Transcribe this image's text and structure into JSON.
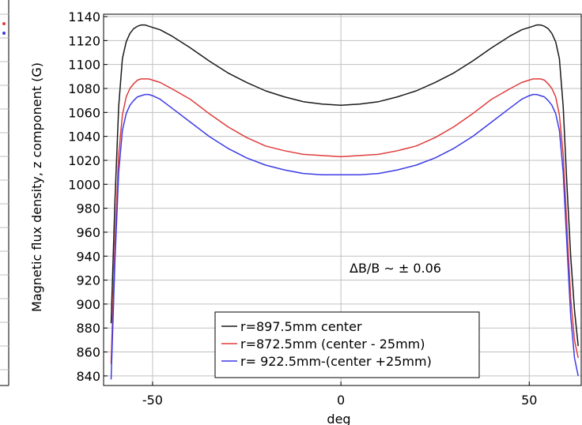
{
  "chart_data": {
    "type": "line",
    "title": "",
    "xlabel": "deg",
    "ylabel": "Magnetic flux density, z component (G)",
    "xlim": [
      -63,
      64
    ],
    "ylim": [
      832,
      1142
    ],
    "x_ticks": [
      -50,
      0,
      50
    ],
    "x_tick_labels": [
      "-50",
      "0",
      "50"
    ],
    "y_ticks": [
      840,
      860,
      880,
      900,
      920,
      940,
      960,
      980,
      1000,
      1020,
      1040,
      1060,
      1080,
      1100,
      1120,
      1140
    ],
    "y_tick_labels": [
      "840",
      "860",
      "880",
      "900",
      "920",
      "940",
      "960",
      "980",
      "1000",
      "1020",
      "1040",
      "1060",
      "1080",
      "1100",
      "1120",
      "1140"
    ],
    "grid": true,
    "legend_position": "bottom-center",
    "annotation": "ΔB/B ∼ ± 0.06",
    "series": [
      {
        "name": "r=897.5mm center",
        "color": "#1a1a1a",
        "x": [
          -61,
          -60,
          -59,
          -58,
          -57,
          -56,
          -55,
          -54,
          -53,
          -52,
          -51,
          -50,
          -48,
          -45,
          -40,
          -35,
          -30,
          -25,
          -20,
          -15,
          -10,
          -5,
          0,
          5,
          10,
          15,
          20,
          25,
          30,
          35,
          40,
          45,
          48,
          50,
          51,
          52,
          53,
          54,
          55,
          56,
          57,
          58,
          59,
          60,
          61,
          62,
          63
        ],
        "values": [
          884,
          985,
          1065,
          1105,
          1119,
          1126,
          1130,
          1132,
          1133,
          1133,
          1132,
          1131,
          1129,
          1124,
          1114,
          1103,
          1093,
          1085,
          1078,
          1073,
          1069,
          1067,
          1066,
          1067,
          1069,
          1073,
          1078,
          1085,
          1093,
          1103,
          1114,
          1124,
          1129,
          1131,
          1132,
          1133,
          1133,
          1132,
          1130,
          1126,
          1119,
          1105,
          1065,
          1000,
          940,
          895,
          865
        ]
      },
      {
        "name": "r=872.5mm (center - 25mm)",
        "color": "#e03c3c",
        "x": [
          -61,
          -60,
          -59,
          -58,
          -57,
          -56,
          -55,
          -54,
          -53,
          -52,
          -51,
          -50,
          -48,
          -45,
          -40,
          -35,
          -30,
          -25,
          -20,
          -15,
          -10,
          -5,
          0,
          5,
          10,
          15,
          20,
          25,
          30,
          35,
          40,
          45,
          48,
          50,
          51,
          52,
          53,
          54,
          55,
          56,
          57,
          58,
          59,
          60,
          61,
          62,
          63
        ],
        "values": [
          850,
          950,
          1025,
          1058,
          1073,
          1080,
          1084,
          1087,
          1088,
          1088,
          1088,
          1087,
          1085,
          1080,
          1071,
          1059,
          1048,
          1039,
          1032,
          1028,
          1025,
          1024,
          1023,
          1024,
          1025,
          1028,
          1032,
          1039,
          1048,
          1059,
          1071,
          1080,
          1085,
          1087,
          1088,
          1088,
          1088,
          1087,
          1084,
          1080,
          1073,
          1058,
          1025,
          965,
          905,
          870,
          855
        ]
      },
      {
        "name": "r= 922.5mm-(center +25mm)",
        "color": "#3c3ce6",
        "x": [
          -61,
          -60,
          -59,
          -58,
          -57,
          -56,
          -55,
          -54,
          -53,
          -52,
          -51,
          -50,
          -48,
          -45,
          -40,
          -35,
          -30,
          -25,
          -20,
          -15,
          -10,
          -5,
          0,
          5,
          10,
          15,
          20,
          25,
          30,
          35,
          40,
          45,
          48,
          50,
          51,
          52,
          53,
          54,
          55,
          56,
          57,
          58,
          59,
          60,
          61,
          62,
          63
        ],
        "values": [
          837,
          935,
          1010,
          1045,
          1059,
          1066,
          1070,
          1073,
          1074,
          1075,
          1075,
          1074,
          1071,
          1064,
          1052,
          1040,
          1030,
          1022,
          1016,
          1012,
          1009,
          1008,
          1008,
          1008,
          1009,
          1012,
          1016,
          1022,
          1030,
          1040,
          1052,
          1064,
          1071,
          1074,
          1075,
          1075,
          1074,
          1073,
          1070,
          1066,
          1059,
          1045,
          1010,
          950,
          890,
          855,
          840
        ]
      }
    ]
  }
}
